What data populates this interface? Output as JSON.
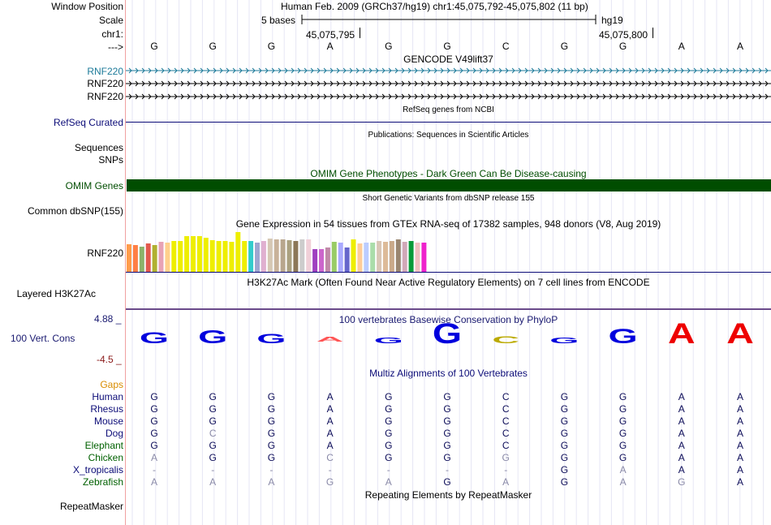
{
  "header": {
    "window_position_label": "Window Position",
    "scale_label": "Scale",
    "chrom_label": "chr1:",
    "strand_label": "--->",
    "assembly_text": "Human Feb. 2009 (GRCh37/hg19)   chr1:45,075,792-45,075,802 (11 bp)",
    "scale_text": "5 bases",
    "scale_db": "hg19",
    "coord_1": "45,075,795",
    "coord_2": "45,075,800"
  },
  "sequence": [
    "G",
    "G",
    "G",
    "A",
    "G",
    "G",
    "C",
    "G",
    "G",
    "A",
    "A"
  ],
  "tracks": {
    "gencode": {
      "title": "GENCODE V49lift37",
      "items": [
        "RNF220",
        "RNF220",
        "RNF220"
      ],
      "color_first": "#1c7a99",
      "color": "#000000"
    },
    "refseq": {
      "title": "RefSeq genes from NCBI",
      "label": "RefSeq Curated",
      "color": "#0c0c78"
    },
    "publications": {
      "title": "Publications: Sequences in Scientific Articles",
      "label": "Sequences"
    },
    "snps": {
      "label": "SNPs"
    },
    "omim": {
      "title": "OMIM Gene Phenotypes - Dark Green Can Be Disease-causing",
      "label": "OMIM Genes",
      "color": "#004d00"
    },
    "dbsnp": {
      "title": "Short Genetic Variants from dbSNP release 155",
      "label": "Common dbSNP(155)"
    },
    "gtex": {
      "title": "Gene Expression in 54 tissues from GTEx RNA-seq of 17382 samples, 948 donors (V8, Aug 2019)",
      "label": "RNF220",
      "bars": [
        {
          "h": 0.68,
          "c": "#ff9b4a"
        },
        {
          "h": 0.66,
          "c": "#ff7f45"
        },
        {
          "h": 0.62,
          "c": "#8bb26a"
        },
        {
          "h": 0.7,
          "c": "#e2594e"
        },
        {
          "h": 0.66,
          "c": "#b0b030"
        },
        {
          "h": 0.74,
          "c": "#e8a2b5"
        },
        {
          "h": 0.72,
          "c": "#ffd08c"
        },
        {
          "h": 0.76,
          "c": "#eeee00"
        },
        {
          "h": 0.76,
          "c": "#eeee00"
        },
        {
          "h": 0.88,
          "c": "#eeee00"
        },
        {
          "h": 0.88,
          "c": "#eeee00"
        },
        {
          "h": 0.88,
          "c": "#eeee00"
        },
        {
          "h": 0.84,
          "c": "#eeee00"
        },
        {
          "h": 0.78,
          "c": "#eeee00"
        },
        {
          "h": 0.76,
          "c": "#eeee00"
        },
        {
          "h": 0.76,
          "c": "#eeee00"
        },
        {
          "h": 0.74,
          "c": "#eeee00"
        },
        {
          "h": 0.98,
          "c": "#eeee00"
        },
        {
          "h": 0.76,
          "c": "#eeee00"
        },
        {
          "h": 0.76,
          "c": "#33cccc"
        },
        {
          "h": 0.72,
          "c": "#9fa6d0"
        },
        {
          "h": 0.76,
          "c": "#e0b0d0"
        },
        {
          "h": 0.82,
          "c": "#d6c8b4"
        },
        {
          "h": 0.8,
          "c": "#c8b29a"
        },
        {
          "h": 0.8,
          "c": "#b8a68e"
        },
        {
          "h": 0.78,
          "c": "#aaa080"
        },
        {
          "h": 0.76,
          "c": "#8c7758"
        },
        {
          "h": 0.8,
          "c": "#cccccc"
        },
        {
          "h": 0.8,
          "c": "#f0d0d8"
        },
        {
          "h": 0.56,
          "c": "#a040c0"
        },
        {
          "h": 0.56,
          "c": "#cc66cc"
        },
        {
          "h": 0.6,
          "c": "#c089a8"
        },
        {
          "h": 0.74,
          "c": "#99cc66"
        },
        {
          "h": 0.72,
          "c": "#aaaaff"
        },
        {
          "h": 0.6,
          "c": "#6666cc"
        },
        {
          "h": 0.8,
          "c": "#eeee00"
        },
        {
          "h": 0.7,
          "c": "#ffcc99"
        },
        {
          "h": 0.72,
          "c": "#bbccff"
        },
        {
          "h": 0.72,
          "c": "#aaddaa"
        },
        {
          "h": 0.76,
          "c": "#d9c6b5"
        },
        {
          "h": 0.74,
          "c": "#ddbb99"
        },
        {
          "h": 0.76,
          "c": "#c9a989"
        },
        {
          "h": 0.8,
          "c": "#9a8670"
        },
        {
          "h": 0.74,
          "c": "#d0a8b8"
        },
        {
          "h": 0.76,
          "c": "#0a9a3a"
        },
        {
          "h": 0.72,
          "c": "#f0c0c0"
        },
        {
          "h": 0.72,
          "c": "#ee22cc"
        }
      ]
    },
    "h3k27ac": {
      "title": "H3K27Ac Mark (Often Found Near Active Regulatory Elements) on 7 cell lines from ENCODE",
      "label": "Layered H3K27Ac"
    },
    "phylop": {
      "title": "100 vertebrates Basewise Conservation by PhyloP",
      "label": "100 Vert. Cons",
      "max_label": "4.88 _",
      "min_label": "-4.5 _",
      "scores": [
        0.45,
        0.55,
        0.35,
        -0.2,
        0.15,
        0.95,
        0.2,
        0.15,
        0.6,
        0.95,
        0.95
      ]
    },
    "multiz": {
      "title": "Multiz Alignments of 100 Vertebrates",
      "gaps_label": "Gaps",
      "species": [
        {
          "name": "Human",
          "bases": [
            "G",
            "G",
            "G",
            "A",
            "G",
            "G",
            "C",
            "G",
            "G",
            "A",
            "A"
          ]
        },
        {
          "name": "Rhesus",
          "bases": [
            "G",
            "G",
            "G",
            "A",
            "G",
            "G",
            "C",
            "G",
            "G",
            "A",
            "A"
          ]
        },
        {
          "name": "Mouse",
          "bases": [
            "G",
            "G",
            "G",
            "A",
            "G",
            "G",
            "C",
            "G",
            "G",
            "A",
            "A"
          ]
        },
        {
          "name": "Dog",
          "bases": [
            "G",
            "C",
            "G",
            "A",
            "G",
            "G",
            "C",
            "G",
            "G",
            "A",
            "A"
          ]
        },
        {
          "name": "Elephant",
          "bases": [
            "G",
            "G",
            "G",
            "A",
            "G",
            "G",
            "C",
            "G",
            "G",
            "A",
            "A"
          ]
        },
        {
          "name": "Chicken",
          "bases": [
            "A",
            "G",
            "G",
            "C",
            "G",
            "G",
            "G",
            "G",
            "G",
            "A",
            "A"
          ]
        },
        {
          "name": "X_tropicalis",
          "bases": [
            "-",
            "-",
            "-",
            "-",
            "-",
            "-",
            "-",
            "G",
            "A",
            "A",
            "A"
          ]
        },
        {
          "name": "Zebrafish",
          "bases": [
            "A",
            "A",
            "A",
            "G",
            "A",
            "G",
            "A",
            "G",
            "A",
            "G",
            "A"
          ]
        }
      ]
    },
    "repeatmasker": {
      "title": "Repeating Elements by RepeatMasker",
      "label": "RepeatMasker"
    }
  },
  "colors": {
    "track_label_blue": "#0c0c78",
    "label_green": "#004d00",
    "gaps_orange": "#d98c00",
    "phylop_max": "#191970",
    "phylop_min": "#8b1a1a",
    "dim_base": "#8a8aa8"
  }
}
